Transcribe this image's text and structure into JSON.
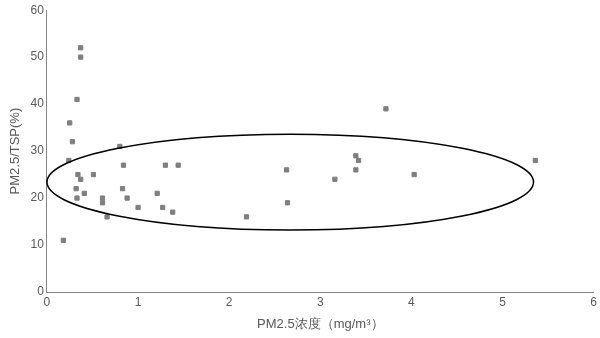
{
  "chart_data": {
    "type": "scatter",
    "x_label": "PM2.5浓度（mg/m³）",
    "y_label": "PM2.5/TSP(%)",
    "x": [
      0.18,
      0.24,
      0.25,
      0.28,
      0.33,
      0.37,
      0.37,
      0.32,
      0.33,
      0.34,
      0.37,
      0.41,
      0.51,
      0.61,
      0.61,
      0.66,
      0.8,
      0.84,
      0.83,
      0.88,
      1.0,
      1.21,
      1.27,
      1.3,
      1.38,
      1.44,
      2.19,
      2.63,
      2.64,
      3.16,
      3.39,
      3.39,
      3.42,
      3.72,
      4.03,
      5.36
    ],
    "values": [
      11,
      28,
      36,
      32,
      41,
      52,
      50,
      22,
      20,
      25,
      24,
      21,
      25,
      20,
      19,
      16,
      31,
      27,
      22,
      20,
      18,
      21,
      18,
      27,
      17,
      27,
      16,
      26,
      19,
      24,
      29,
      26,
      28,
      39,
      25,
      28
    ],
    "color": "#7f7f7f",
    "marker": "square",
    "xlim": [
      0,
      6
    ],
    "xticks": [
      0,
      1,
      2,
      3,
      4,
      5,
      6
    ],
    "ylim": [
      0,
      60
    ],
    "yticks": [
      0,
      10,
      20,
      30,
      40,
      50,
      60
    ],
    "grid": false
  }
}
